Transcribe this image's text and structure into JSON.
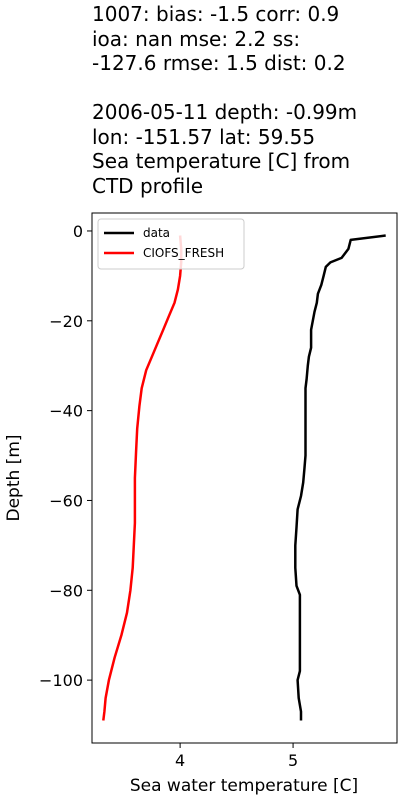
{
  "header": {
    "stats_line1": "1007: bias: -1.5  corr: 0.9",
    "stats_line2": "ioa: nan  mse: 2.2  ss:",
    "stats_line3": "-127.6  rmse: 1.5  dist: 0.2",
    "info_line1": "2006-05-11 depth: -0.99m",
    "info_line2": "lon: -151.57 lat: 59.55",
    "info_line3": "Sea temperature [C] from",
    "info_line4": "CTD profile"
  },
  "chart_data": {
    "type": "line",
    "xlabel": "Sea water temperature [C]",
    "ylabel": "Depth [m]",
    "xlim": [
      3.22,
      5.92
    ],
    "ylim": [
      -114,
      4
    ],
    "xticks": [
      4,
      5
    ],
    "xtick_labels": [
      "4",
      "5"
    ],
    "yticks": [
      0,
      -20,
      -40,
      -60,
      -80,
      -100
    ],
    "ytick_labels": [
      "0",
      "−20",
      "−40",
      "−60",
      "−80",
      "−100"
    ],
    "grid": false,
    "legend_position": "top-left",
    "series": [
      {
        "name": "data",
        "color": "#000000",
        "x": [
          5.82,
          5.51,
          5.49,
          5.43,
          5.33,
          5.29,
          5.27,
          5.25,
          5.22,
          5.21,
          5.19,
          5.16,
          5.16,
          5.15,
          5.14,
          5.13,
          5.12,
          5.11,
          5.11,
          5.11,
          5.11,
          5.11,
          5.1,
          5.09,
          5.07,
          5.04,
          5.03,
          5.02,
          5.02,
          5.03,
          5.06,
          5.06,
          5.06,
          5.06,
          5.04,
          5.05,
          5.07,
          5.07
        ],
        "y": [
          -1,
          -2,
          -4,
          -6,
          -7,
          -8,
          -10,
          -12,
          -14,
          -16,
          -18,
          -22,
          -26,
          -27,
          -28,
          -30,
          -33,
          -35,
          -38,
          -42,
          -46,
          -50,
          -53,
          -56,
          -59,
          -62,
          -66,
          -70,
          -75,
          -79,
          -81,
          -85,
          -90,
          -98,
          -100,
          -104,
          -107,
          -109
        ]
      },
      {
        "name": "CIOFS_FRESH",
        "color": "#ff0000",
        "x": [
          4.0,
          4.01,
          4.01,
          4.0,
          3.98,
          3.95,
          3.9,
          3.85,
          3.8,
          3.75,
          3.7,
          3.66,
          3.64,
          3.62,
          3.61,
          3.6,
          3.6,
          3.6,
          3.59,
          3.58,
          3.56,
          3.53,
          3.48,
          3.42,
          3.37,
          3.34,
          3.33,
          3.32
        ],
        "y": [
          -1,
          -4,
          -7,
          -10,
          -13,
          -16,
          -19,
          -22,
          -25,
          -28,
          -31,
          -35,
          -39,
          -44,
          -49,
          -55,
          -60,
          -65,
          -70,
          -75,
          -80,
          -85,
          -90,
          -95,
          -100,
          -104,
          -107,
          -109
        ]
      }
    ]
  }
}
